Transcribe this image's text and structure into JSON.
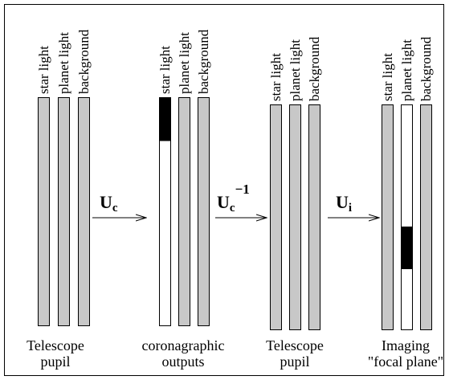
{
  "groups": [
    {
      "bars": [
        "star light",
        "planet light",
        "background"
      ],
      "caption": [
        "Telescope",
        "pupil"
      ]
    },
    {
      "bars": [
        "star light",
        "planet light",
        "background"
      ],
      "caption": [
        "coronagraphic",
        "outputs"
      ]
    },
    {
      "bars": [
        "star light",
        "planet light",
        "background"
      ],
      "caption": [
        "Telescope",
        "pupil"
      ]
    },
    {
      "bars": [
        "star light",
        "planet light",
        "background"
      ],
      "caption": [
        "Imaging",
        "\"focal plane\""
      ]
    }
  ],
  "operators": [
    {
      "symbol": "U",
      "sub": "c"
    },
    {
      "symbol": "U",
      "sub": "c",
      "sup": "−1"
    },
    {
      "symbol": "U",
      "sub": "i"
    }
  ]
}
